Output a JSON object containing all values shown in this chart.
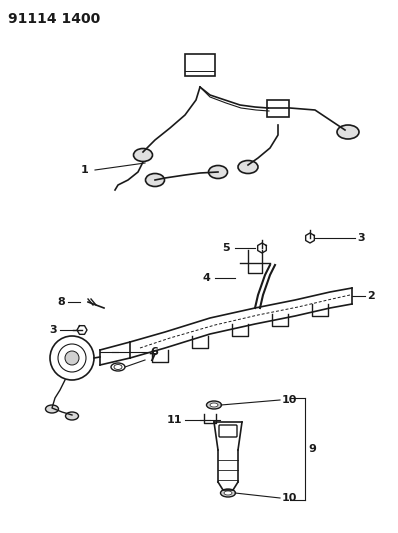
{
  "title": "91114 1400",
  "background_color": "#ffffff",
  "line_color": "#1a1a1a",
  "fig_width": 3.98,
  "fig_height": 5.33,
  "dpi": 100,
  "title_fontsize": 10
}
